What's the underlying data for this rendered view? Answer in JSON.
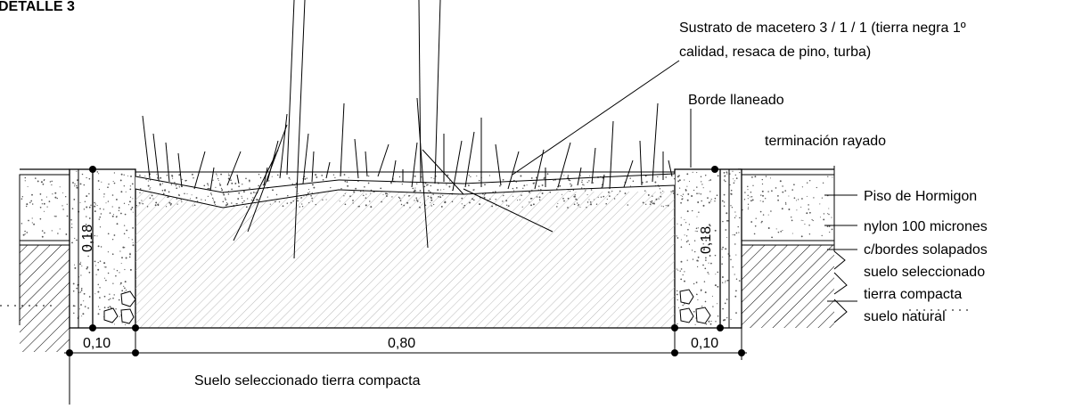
{
  "title": "DETALLE 3",
  "labels": {
    "sustrato_line1": "Sustrato de macetero 3 / 1 / 1 (tierra negra 1º",
    "sustrato_line2": "calidad, resaca de pino, turba)",
    "borde": "Borde llaneado",
    "terminacion": "terminación rayado",
    "piso": "Piso de Hormigon",
    "nylon": "nylon 100 micrones",
    "bordes": "c/bordes solapados",
    "suelo_sel": "suelo seleccionado",
    "tierra": "tierra compacta",
    "suelo_nat": "suelo natural",
    "bottom": "Suelo seleccionado tierra compacta"
  },
  "dimensions": {
    "left_width": "0,10",
    "center_width": "0,80",
    "right_width": "0,10",
    "left_height": "0,18",
    "right_height": "0,18"
  },
  "colors": {
    "line": "#000000",
    "hatch": "#9a9a9a",
    "concrete_dot": "#555555"
  }
}
